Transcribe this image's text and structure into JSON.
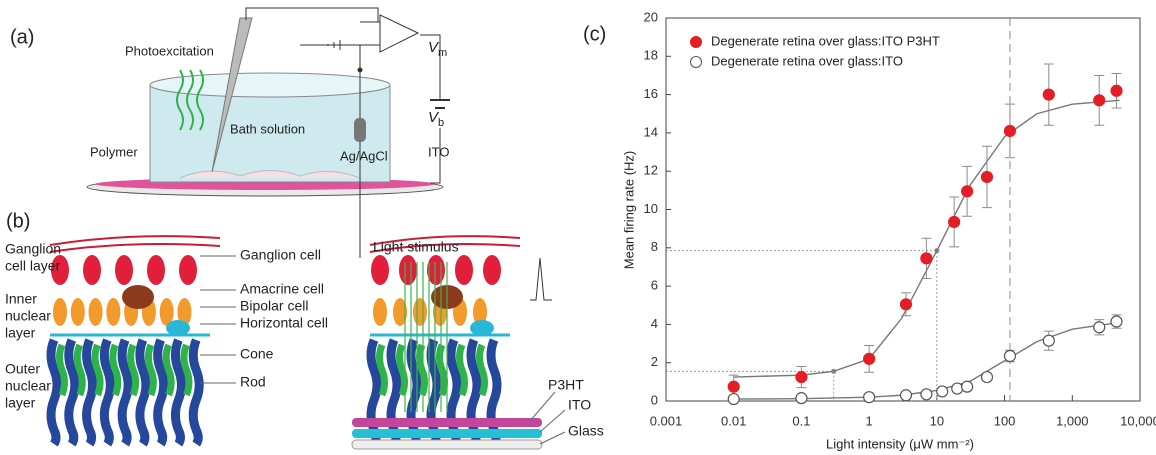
{
  "panel_a": {
    "label": "(a)",
    "photoexcitation": "Photoexcitation",
    "bath": "Bath solution",
    "electrode": "Ag/AgCl",
    "polymer": "Polymer",
    "ito": "ITO",
    "vm": {
      "symbol": "V",
      "subscript": "m"
    },
    "vb": {
      "symbol": "V",
      "subscript": "b"
    }
  },
  "panel_b": {
    "label": "(b)",
    "layers": [
      [
        "Ganglion",
        "cell layer"
      ],
      [
        "Inner",
        "nuclear",
        "layer"
      ],
      [
        "Outer",
        "nuclear",
        "layer"
      ]
    ],
    "cells": [
      "Ganglion cell",
      "Amacrine cell",
      "Bipolar cell",
      "Horizontal cell",
      "Cone",
      "Rod"
    ],
    "light": "Light stimulus",
    "substrate": [
      "P3HT",
      "ITO",
      "Glass"
    ]
  },
  "chart_data": {
    "type": "scatter",
    "panel_label": "(c)",
    "xlabel": "Light intensity (μW mm⁻²)",
    "ylabel": "Mean firing rate (Hz)",
    "log_x": true,
    "xlim": [
      0.001,
      10000
    ],
    "xticks": [
      0.001,
      0.01,
      0.1,
      1,
      10,
      100,
      {
        "value": 1000,
        "label": "1,000"
      },
      {
        "value": 10000,
        "label": "10,000"
      }
    ],
    "ylim": [
      0,
      20
    ],
    "yticks": [
      0,
      2,
      4,
      6,
      8,
      10,
      12,
      14,
      16,
      18,
      20
    ],
    "legend": "top-left",
    "error_color": "#8c8c8c",
    "series": [
      {
        "name": "Degenerate retina over glass:ITO P3HT",
        "color": "#e31e24",
        "marker": "filled",
        "x": [
          0.01,
          0.1,
          1,
          3.5,
          7,
          18,
          28,
          55,
          120,
          450,
          2500,
          4500
        ],
        "values": [
          0.75,
          1.25,
          2.2,
          5.05,
          7.45,
          9.35,
          10.95,
          11.7,
          14.1,
          16.0,
          15.7,
          16.2
        ],
        "errors": [
          0.6,
          0.55,
          0.7,
          0.6,
          1.05,
          1.3,
          1.3,
          1.6,
          1.4,
          1.6,
          1.3,
          0.9
        ]
      },
      {
        "name": "Degenerate retina over glass:ITO",
        "color": "#555555",
        "marker": "open",
        "x": [
          0.01,
          0.1,
          1,
          3.5,
          7,
          12,
          20,
          28,
          55,
          120,
          450,
          2500,
          4500
        ],
        "values": [
          0.1,
          0.15,
          0.2,
          0.3,
          0.35,
          0.5,
          0.65,
          0.75,
          1.25,
          2.35,
          3.15,
          3.85,
          4.15
        ],
        "errors": [
          0.1,
          0.1,
          0.1,
          0.1,
          0.1,
          0.1,
          0.1,
          0.1,
          0.15,
          0.3,
          0.5,
          0.4,
          0.35
        ]
      }
    ],
    "fits": [
      {
        "color": "#777777",
        "x": [
          0.01,
          0.1,
          0.3,
          1,
          3,
          10,
          30,
          100,
          300,
          1000,
          5000
        ],
        "values": [
          1.25,
          1.35,
          1.55,
          2.2,
          4.3,
          7.85,
          11.2,
          13.8,
          15.0,
          15.5,
          15.7
        ]
      },
      {
        "color": "#777777",
        "x": [
          0.01,
          0.1,
          1,
          3,
          10,
          30,
          100,
          300,
          1000,
          5000
        ],
        "values": [
          0.1,
          0.12,
          0.2,
          0.3,
          0.55,
          1.0,
          2.1,
          3.1,
          3.75,
          4.1
        ]
      }
    ],
    "guides": [
      {
        "x": 10,
        "y": 7.85
      },
      {
        "x": 0.3,
        "y": 1.55
      }
    ],
    "reference_x": 120
  }
}
